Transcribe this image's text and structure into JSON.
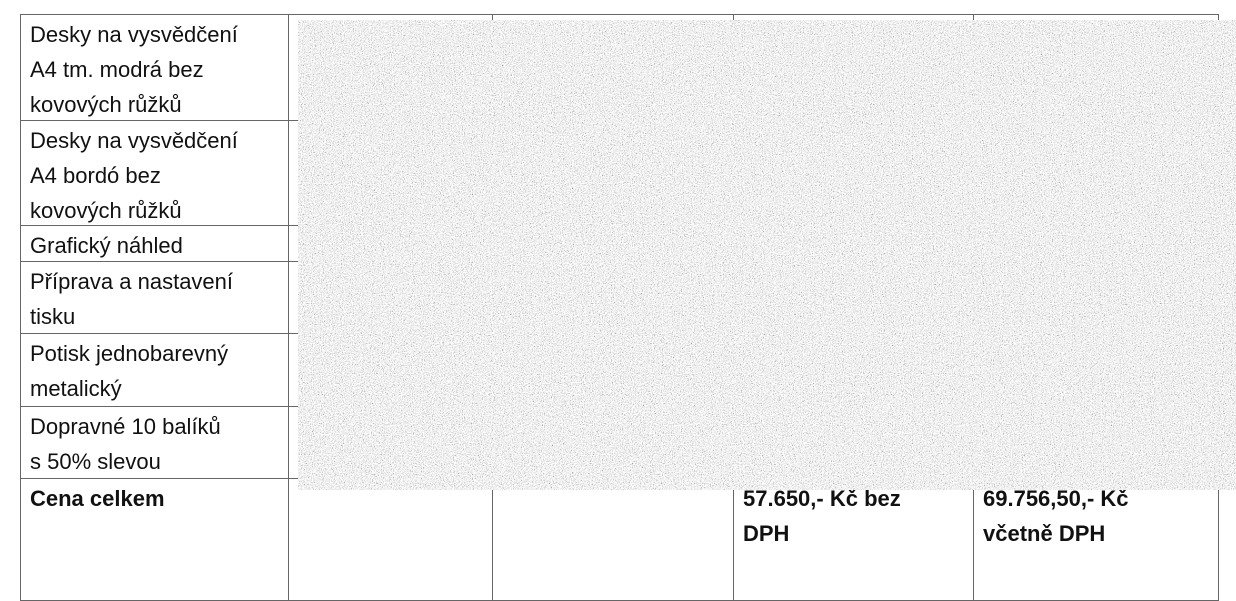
{
  "table": {
    "rows": [
      {
        "label": [
          "Desky na vysvědčení",
          "A4 tm. modrá bez",
          "kovových růžků"
        ]
      },
      {
        "label": [
          "Desky na vysvědčení",
          "A4 bordó bez",
          "kovových růžků"
        ]
      },
      {
        "label": [
          "Grafický náhled"
        ]
      },
      {
        "label": [
          "Příprava a nastavení",
          "tisku"
        ]
      },
      {
        "label": [
          "Potisk jednobarevný",
          "metalický"
        ]
      },
      {
        "label": [
          "Dopravné 10 balíků",
          "s 50% slevou"
        ]
      }
    ],
    "total": {
      "label": [
        "Cena celkem"
      ],
      "net": [
        "57.650,- Kč bez",
        "DPH"
      ],
      "gross": [
        "69.756,50,- Kč",
        "včetně DPH"
      ]
    }
  }
}
